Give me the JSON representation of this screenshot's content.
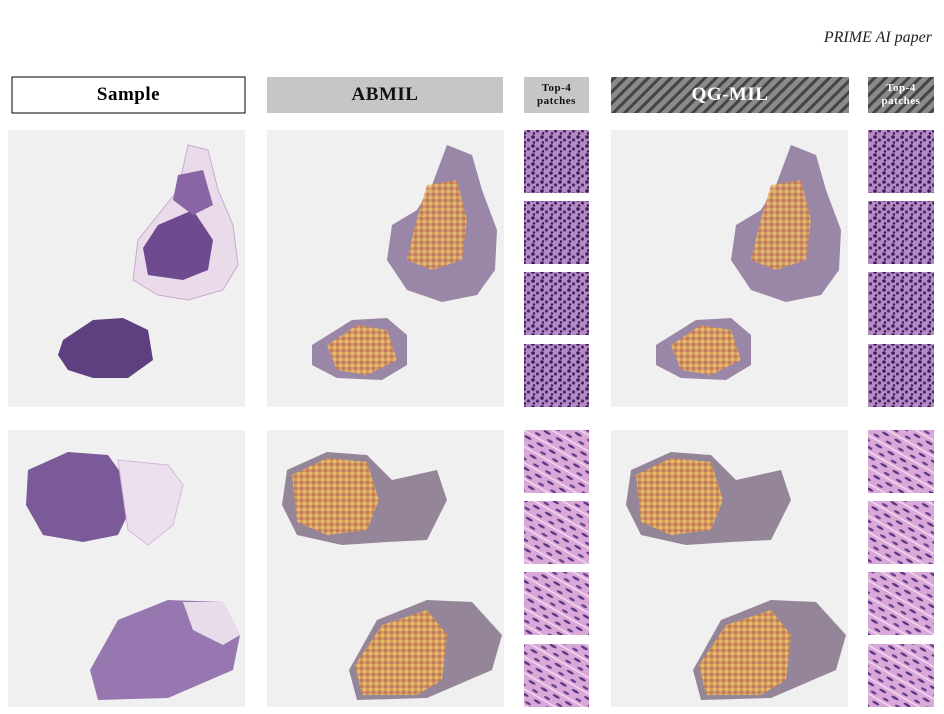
{
  "header": {
    "text": "PRIME AI paper"
  },
  "columns": [
    {
      "label": "Sample"
    },
    {
      "label": "ABMIL"
    },
    {
      "label": "Top-4 patches"
    },
    {
      "label": "QG-MIL"
    },
    {
      "label": "Top-4 patches"
    }
  ]
}
